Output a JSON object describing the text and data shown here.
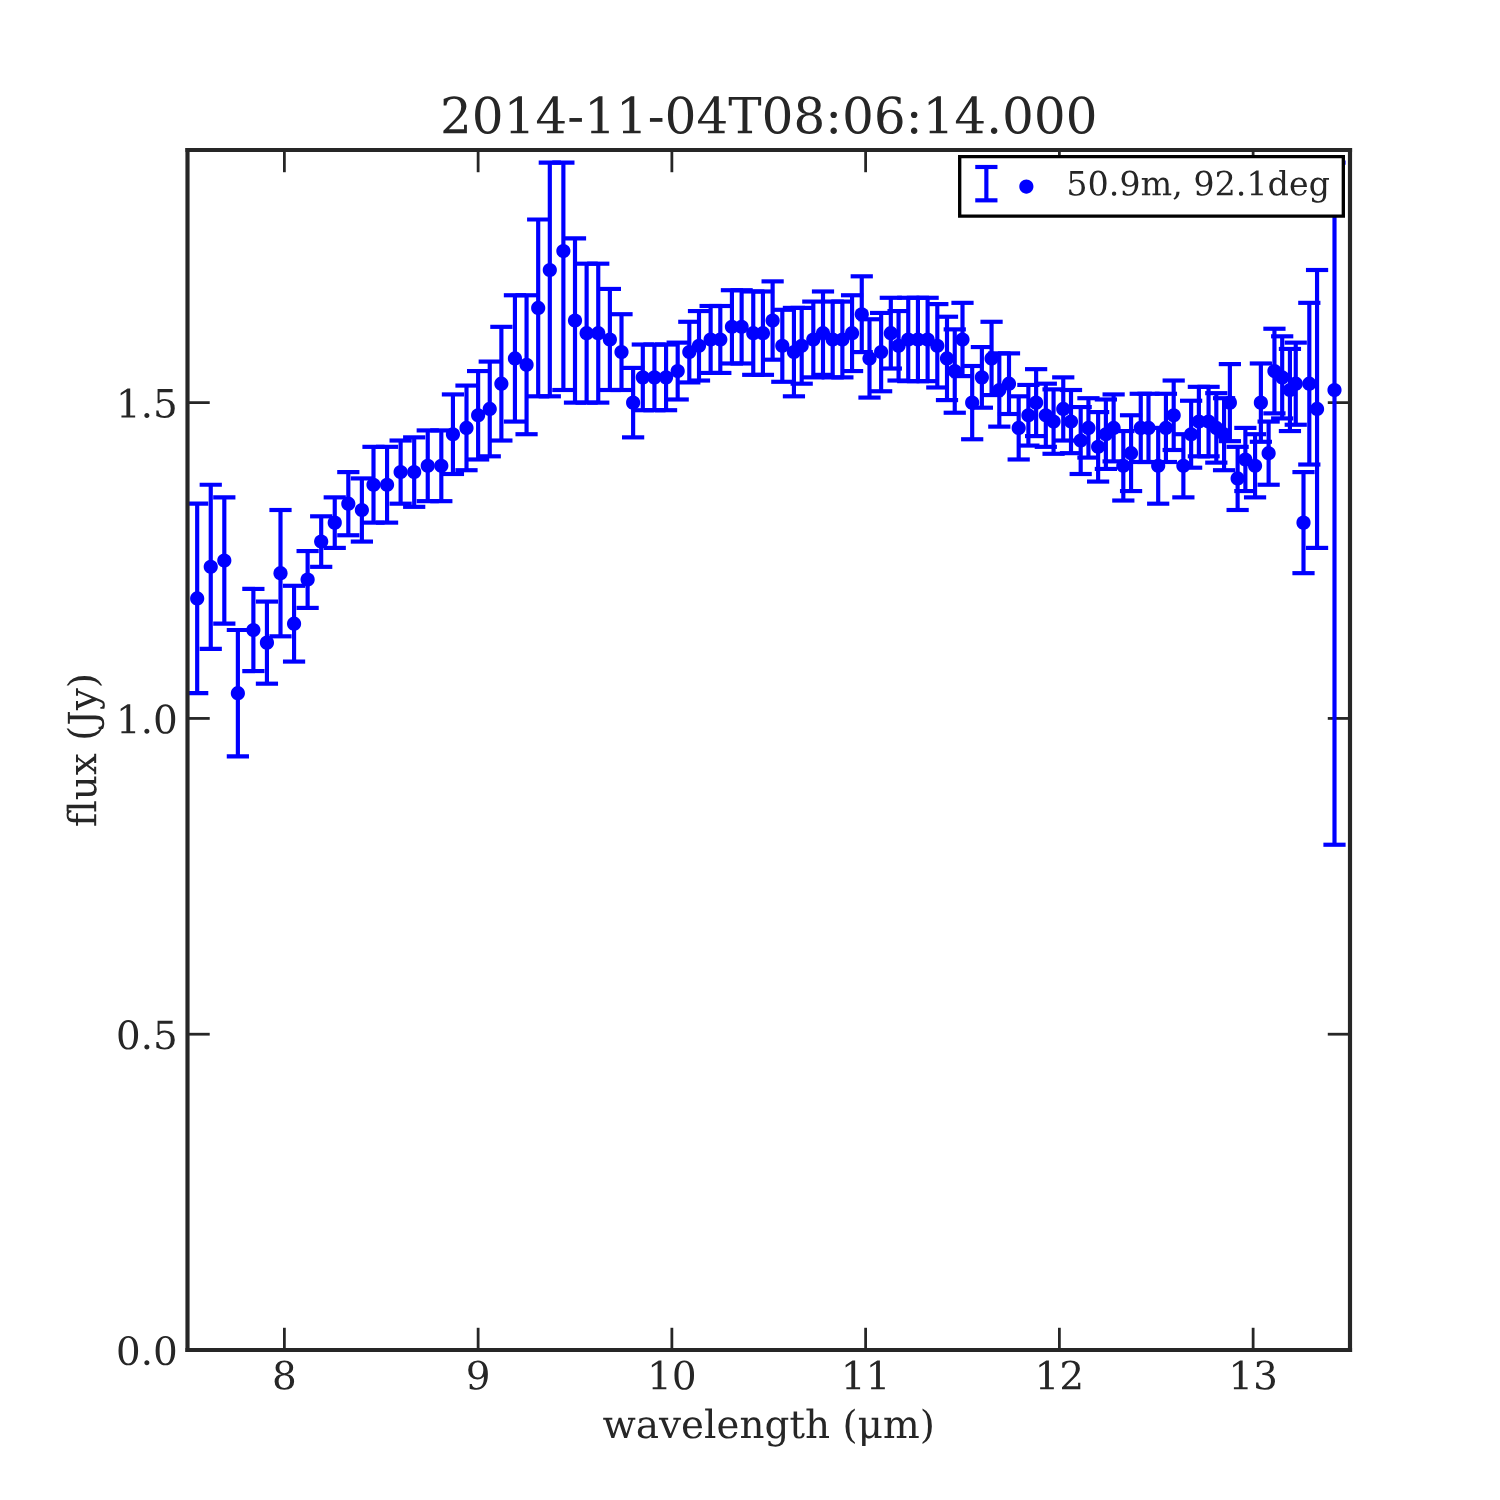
{
  "chart_data": {
    "type": "scatter",
    "title": "2014-11-04T08:06:14.000",
    "xlabel": "wavelength (μm)",
    "ylabel": "flux (Jy)",
    "xlim": [
      7.5,
      13.5
    ],
    "ylim": [
      0,
      1.9
    ],
    "xticks": [
      8,
      9,
      10,
      11,
      12,
      13
    ],
    "yticks": [
      {
        "value": 0,
        "label": "0.0"
      },
      {
        "value": 0.5,
        "label": "0.5"
      },
      {
        "value": 1,
        "label": "1.0"
      },
      {
        "value": 1.5,
        "label": "1.5"
      }
    ],
    "grid": false,
    "legend": "top right",
    "marker": "circle",
    "series": [
      {
        "name": "50.9m, 92.1deg",
        "color": "#0000ff",
        "x": [
          7.55,
          7.62,
          7.69,
          7.76,
          7.84,
          7.91,
          7.98,
          8.05,
          8.12,
          8.19,
          8.26,
          8.33,
          8.4,
          8.46,
          8.53,
          8.6,
          8.67,
          8.74,
          8.81,
          8.87,
          8.94,
          9.0,
          9.06,
          9.12,
          9.19,
          9.25,
          9.31,
          9.37,
          9.44,
          9.5,
          9.56,
          9.62,
          9.68,
          9.74,
          9.8,
          9.85,
          9.91,
          9.97,
          10.03,
          10.09,
          10.14,
          10.2,
          10.25,
          10.31,
          10.36,
          10.42,
          10.47,
          10.52,
          10.57,
          10.63,
          10.67,
          10.73,
          10.78,
          10.83,
          10.88,
          10.93,
          10.98,
          11.02,
          11.08,
          11.13,
          11.17,
          11.22,
          11.27,
          11.32,
          11.37,
          11.42,
          11.46,
          11.5,
          11.55,
          11.6,
          11.65,
          11.69,
          11.74,
          11.79,
          11.84,
          11.88,
          11.93,
          11.97,
          12.02,
          12.06,
          12.11,
          12.15,
          12.2,
          12.24,
          12.28,
          12.33,
          12.37,
          12.42,
          12.46,
          12.51,
          12.55,
          12.59,
          12.64,
          12.68,
          12.72,
          12.77,
          12.81,
          12.85,
          12.88,
          12.92,
          12.96,
          13.01,
          13.04,
          13.08,
          13.11,
          13.15,
          13.19,
          13.22,
          13.26,
          13.29,
          13.33,
          13.42
        ],
        "values": [
          1.19,
          1.24,
          1.25,
          1.04,
          1.14,
          1.12,
          1.23,
          1.15,
          1.22,
          1.28,
          1.31,
          1.34,
          1.33,
          1.37,
          1.37,
          1.39,
          1.39,
          1.4,
          1.4,
          1.45,
          1.46,
          1.48,
          1.49,
          1.53,
          1.57,
          1.56,
          1.65,
          1.71,
          1.74,
          1.63,
          1.61,
          1.61,
          1.6,
          1.58,
          1.5,
          1.54,
          1.54,
          1.54,
          1.55,
          1.58,
          1.59,
          1.6,
          1.6,
          1.62,
          1.62,
          1.61,
          1.61,
          1.63,
          1.59,
          1.58,
          1.59,
          1.6,
          1.61,
          1.6,
          1.6,
          1.61,
          1.64,
          1.57,
          1.58,
          1.61,
          1.59,
          1.6,
          1.6,
          1.6,
          1.59,
          1.57,
          1.55,
          1.6,
          1.5,
          1.54,
          1.57,
          1.52,
          1.53,
          1.46,
          1.48,
          1.5,
          1.48,
          1.47,
          1.49,
          1.47,
          1.44,
          1.46,
          1.43,
          1.45,
          1.46,
          1.4,
          1.42,
          1.46,
          1.46,
          1.4,
          1.46,
          1.48,
          1.4,
          1.45,
          1.47,
          1.47,
          1.46,
          1.45,
          1.5,
          1.38,
          1.41,
          1.4,
          1.5,
          1.42,
          1.55,
          1.54,
          1.52,
          1.53,
          1.31,
          1.53,
          1.49,
          1.52
        ],
        "errors": [
          0.15,
          0.13,
          0.1,
          0.1,
          0.065,
          0.065,
          0.1,
          0.06,
          0.045,
          0.04,
          0.04,
          0.05,
          0.05,
          0.06,
          0.06,
          0.05,
          0.055,
          0.056,
          0.056,
          0.063,
          0.067,
          0.07,
          0.075,
          0.09,
          0.1,
          0.11,
          0.14,
          [
            1.51,
            1.88
          ],
          [
            1.52,
            1.88
          ],
          0.13,
          0.11,
          0.11,
          0.08,
          0.06,
          0.055,
          0.052,
          0.052,
          0.052,
          0.045,
          0.048,
          0.055,
          0.053,
          0.053,
          0.058,
          0.058,
          0.066,
          0.066,
          0.062,
          0.057,
          0.07,
          0.06,
          0.06,
          0.066,
          0.06,
          0.06,
          0.06,
          0.06,
          0.062,
          0.062,
          0.056,
          0.055,
          0.066,
          0.066,
          0.066,
          0.066,
          0.066,
          0.066,
          0.058,
          0.058,
          0.048,
          0.058,
          0.058,
          0.048,
          0.05,
          0.048,
          0.053,
          0.05,
          0.051,
          0.05,
          0.05,
          0.053,
          0.047,
          0.055,
          0.055,
          0.053,
          0.055,
          0.06,
          0.054,
          0.054,
          0.06,
          0.054,
          0.055,
          0.05,
          0.053,
          0.055,
          0.055,
          0.055,
          0.057,
          0.061,
          0.05,
          0.05,
          0.05,
          0.062,
          0.05,
          0.067,
          0.065,
          0.065,
          0.065,
          0.08,
          0.128,
          0.22,
          [
            0.8,
            1.88
          ]
        ]
      }
    ]
  }
}
